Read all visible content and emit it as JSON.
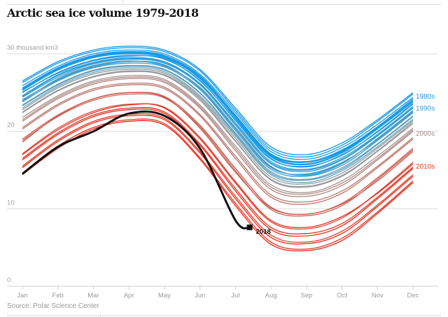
{
  "title": "Arctic sea ice volume 1979-2018",
  "source": "Source: Polar Science Center",
  "chart_data": {
    "type": "line",
    "title": "Arctic sea ice volume 1979-2018",
    "ylabel": "30 thousand km3",
    "ylim": [
      0,
      30
    ],
    "yticks": [
      {
        "value": 0,
        "label": "0"
      },
      {
        "value": 10,
        "label": "10"
      },
      {
        "value": 20,
        "label": "20"
      },
      {
        "value": 30,
        "label": "30 thousand km3"
      }
    ],
    "grid": true,
    "categories": [
      "Jan",
      "Feb",
      "Mar",
      "Apr",
      "May",
      "Jun",
      "Jul",
      "Aug",
      "Sep",
      "Oct",
      "Nov",
      "Dec"
    ],
    "decade_labels": [
      {
        "label": "1980s",
        "color": "#1a9be6",
        "value": 25.0
      },
      {
        "label": "1990s",
        "color": "#3d9fd6",
        "value": 23.5
      },
      {
        "label": "2000s",
        "color": "#a89390",
        "value": 20.2
      },
      {
        "label": "2010s",
        "color": "#e8402c",
        "value": 16.0
      }
    ],
    "series": [
      {
        "year": 1979,
        "color": "#0e94ea",
        "values": [
          26.5,
          29,
          30.5,
          31,
          30.5,
          28,
          23,
          18,
          17,
          18.5,
          21.5,
          25
        ]
      },
      {
        "year": 1980,
        "color": "#1096ea",
        "values": [
          26.3,
          28.8,
          30.3,
          30.8,
          30.3,
          27.8,
          22.7,
          17.7,
          16.7,
          18.2,
          21.3,
          24.8
        ]
      },
      {
        "year": 1981,
        "color": "#1296e8",
        "values": [
          25.5,
          28.1,
          29.7,
          30.2,
          29.7,
          27.0,
          22.0,
          17.0,
          16.0,
          17.5,
          20.5,
          24.0
        ]
      },
      {
        "year": 1982,
        "color": "#1498e8",
        "values": [
          25.9,
          28.4,
          30.0,
          30.5,
          30.0,
          27.4,
          22.4,
          17.4,
          16.4,
          17.9,
          20.9,
          24.4
        ]
      },
      {
        "year": 1983,
        "color": "#1698e6",
        "values": [
          25.6,
          28.2,
          29.8,
          30.3,
          29.8,
          27.2,
          22.1,
          17.1,
          16.1,
          17.6,
          20.6,
          24.2
        ]
      },
      {
        "year": 1984,
        "color": "#1899e4",
        "values": [
          25.0,
          27.6,
          29.2,
          29.8,
          29.3,
          26.6,
          21.4,
          16.4,
          15.5,
          16.9,
          20.0,
          23.6
        ]
      },
      {
        "year": 1985,
        "color": "#1a9ae4",
        "values": [
          25.3,
          27.9,
          29.5,
          30.0,
          29.5,
          26.8,
          21.7,
          16.7,
          15.7,
          17.2,
          20.3,
          23.8
        ]
      },
      {
        "year": 1986,
        "color": "#1c9ae2",
        "values": [
          25.4,
          28.0,
          29.6,
          30.1,
          29.6,
          26.9,
          21.8,
          16.8,
          15.8,
          17.3,
          20.4,
          23.9
        ]
      },
      {
        "year": 1987,
        "color": "#1f9be0",
        "values": [
          25.6,
          28.0,
          29.6,
          30.2,
          29.8,
          27.1,
          21.9,
          16.9,
          16.0,
          17.4,
          20.4,
          23.9
        ]
      },
      {
        "year": 1988,
        "color": "#229cde",
        "values": [
          25.1,
          27.5,
          29.1,
          29.7,
          29.4,
          26.5,
          21.5,
          16.5,
          15.4,
          17.0,
          19.9,
          23.5
        ]
      },
      {
        "year": 1989,
        "color": "#269cdc",
        "values": [
          24.6,
          27.3,
          28.9,
          29.5,
          29.0,
          26.2,
          21.1,
          16.1,
          15.1,
          16.6,
          19.6,
          23.2
        ]
      },
      {
        "year": 1990,
        "color": "#2a9dda",
        "values": [
          24.4,
          27.0,
          28.7,
          29.3,
          28.8,
          26.0,
          20.8,
          15.8,
          14.8,
          16.3,
          19.4,
          23.0
        ]
      },
      {
        "year": 1991,
        "color": "#309dd6",
        "values": [
          24.0,
          26.7,
          28.4,
          29.0,
          28.5,
          25.6,
          20.4,
          15.4,
          14.4,
          15.9,
          19.0,
          22.6
        ]
      },
      {
        "year": 1992,
        "color": "#369ed4",
        "values": [
          24.5,
          27.2,
          28.8,
          29.4,
          28.9,
          26.1,
          20.9,
          15.9,
          15.0,
          16.4,
          19.5,
          23.1
        ]
      },
      {
        "year": 1993,
        "color": "#3e9ed0",
        "values": [
          23.8,
          26.5,
          28.2,
          28.8,
          28.3,
          25.4,
          20.1,
          15.1,
          14.2,
          15.6,
          18.8,
          22.4
        ]
      },
      {
        "year": 1994,
        "color": "#469fcc",
        "values": [
          24.1,
          26.6,
          28.3,
          29.0,
          28.6,
          25.5,
          20.3,
          15.3,
          14.5,
          16.0,
          18.9,
          22.5
        ]
      },
      {
        "year": 1995,
        "color": "#509fc6",
        "values": [
          23.3,
          26.0,
          27.8,
          28.4,
          27.9,
          24.9,
          19.6,
          14.6,
          13.7,
          15.1,
          18.3,
          21.9
        ]
      },
      {
        "year": 1996,
        "color": "#5a9fc0",
        "values": [
          23.9,
          26.8,
          28.5,
          29.1,
          28.4,
          25.7,
          20.5,
          15.5,
          14.3,
          15.8,
          19.1,
          22.7
        ]
      },
      {
        "year": 1997,
        "color": "#669fb8",
        "values": [
          23.4,
          26.1,
          27.9,
          28.5,
          28.0,
          25.0,
          19.8,
          14.8,
          13.8,
          15.3,
          18.4,
          22.0
        ]
      },
      {
        "year": 1998,
        "color": "#749eae",
        "values": [
          23.0,
          25.8,
          27.6,
          28.2,
          27.7,
          24.6,
          19.4,
          14.4,
          13.4,
          14.9,
          18.0,
          21.6
        ]
      },
      {
        "year": 1999,
        "color": "#849ca4",
        "values": [
          22.8,
          25.6,
          27.4,
          28.0,
          27.5,
          24.4,
          19.1,
          14.1,
          13.2,
          14.6,
          17.8,
          21.4
        ]
      },
      {
        "year": 2000,
        "color": "#949a9c",
        "values": [
          22.5,
          25.3,
          27.1,
          27.8,
          27.3,
          24.2,
          18.8,
          13.8,
          12.9,
          14.3,
          17.5,
          21.2
        ]
      },
      {
        "year": 2001,
        "color": "#9c9898",
        "values": [
          22.4,
          25.2,
          27.0,
          27.7,
          27.2,
          24.0,
          18.7,
          13.7,
          12.8,
          14.2,
          17.4,
          21.0
        ]
      },
      {
        "year": 2002,
        "color": "#a49290",
        "values": [
          21.8,
          24.6,
          26.5,
          27.2,
          26.7,
          23.4,
          18.1,
          13.1,
          12.1,
          13.6,
          16.8,
          20.4
        ]
      },
      {
        "year": 2003,
        "color": "#aa8a86",
        "values": [
          21.5,
          24.4,
          26.3,
          27.0,
          26.5,
          23.2,
          17.8,
          12.8,
          11.9,
          13.3,
          16.5,
          20.2
        ]
      },
      {
        "year": 2004,
        "color": "#b0827c",
        "values": [
          21.3,
          24.2,
          26.1,
          26.8,
          26.3,
          23.0,
          17.5,
          12.5,
          11.6,
          13.0,
          16.3,
          20.0
        ]
      },
      {
        "year": 2005,
        "color": "#b67a72",
        "values": [
          20.5,
          23.5,
          25.5,
          26.2,
          25.7,
          22.2,
          16.8,
          11.8,
          10.9,
          12.3,
          15.5,
          19.2
        ]
      },
      {
        "year": 2006,
        "color": "#bc7268",
        "values": [
          20.3,
          23.3,
          25.3,
          26.0,
          25.5,
          22.0,
          16.5,
          11.5,
          10.6,
          12.0,
          15.3,
          19.0
        ]
      },
      {
        "year": 2007,
        "color": "#c4685c",
        "values": [
          18.8,
          21.9,
          24.0,
          24.8,
          24.3,
          20.6,
          14.9,
          9.9,
          9.1,
          10.4,
          13.8,
          17.6
        ]
      },
      {
        "year": 2008,
        "color": "#ca5e50",
        "values": [
          18.6,
          22.0,
          24.2,
          25.0,
          24.4,
          20.4,
          14.7,
          10.1,
          9.3,
          10.6,
          13.6,
          17.4
        ]
      },
      {
        "year": 2009,
        "color": "#d05446",
        "values": [
          19.0,
          22.1,
          24.2,
          25.0,
          24.5,
          20.8,
          15.2,
          10.2,
          9.3,
          10.7,
          14.0,
          17.8
        ]
      },
      {
        "year": 2010,
        "color": "#d84a3a",
        "values": [
          17.1,
          20.4,
          22.6,
          23.5,
          23.0,
          19.0,
          13.3,
          8.3,
          7.4,
          8.8,
          12.1,
          16.0
        ]
      },
      {
        "year": 2011,
        "color": "#de4030",
        "values": [
          15.5,
          18.9,
          21.3,
          22.2,
          21.7,
          17.4,
          11.6,
          6.6,
          5.7,
          7.1,
          10.5,
          14.4
        ]
      },
      {
        "year": 2012,
        "color": "#e43626",
        "values": [
          14.6,
          18.1,
          20.5,
          21.5,
          21.0,
          16.6,
          10.7,
          5.7,
          4.8,
          6.2,
          9.6,
          13.6
        ]
      },
      {
        "year": 2013,
        "color": "#e83020",
        "values": [
          16.5,
          19.8,
          22.1,
          23.0,
          22.5,
          18.4,
          12.6,
          7.6,
          6.8,
          8.1,
          11.5,
          15.4
        ]
      },
      {
        "year": 2014,
        "color": "#ec2c1c",
        "values": [
          17.0,
          20.2,
          22.4,
          23.4,
          23.1,
          19.2,
          13.5,
          8.5,
          7.6,
          9.0,
          12.0,
          15.8
        ]
      },
      {
        "year": 2015,
        "color": "#ee2818",
        "values": [
          16.3,
          19.6,
          21.9,
          22.8,
          22.3,
          18.2,
          12.3,
          7.3,
          6.5,
          7.8,
          11.3,
          15.2
        ]
      },
      {
        "year": 2016,
        "color": "#f02414",
        "values": [
          15.3,
          18.7,
          21.1,
          22.0,
          21.5,
          17.2,
          11.3,
          6.3,
          5.5,
          6.8,
          10.3,
          14.2
        ]
      },
      {
        "year": 2017,
        "color": "#f22010",
        "values": [
          14.4,
          17.8,
          20.3,
          21.3,
          20.8,
          16.4,
          10.4,
          5.4,
          4.6,
          5.9,
          9.4,
          13.4
        ]
      }
    ],
    "highlight": {
      "label": "2018",
      "color": "#111111",
      "values": [
        14.5,
        18.0,
        20.0,
        22.3,
        22.0,
        17.8,
        8.5
      ],
      "end_point": {
        "month": 6.4,
        "value": 7.6
      }
    }
  }
}
